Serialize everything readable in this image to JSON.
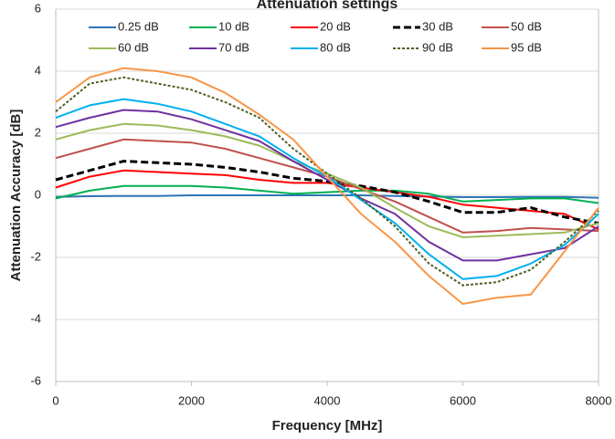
{
  "chart_data": {
    "type": "line",
    "title": "Attenuation settings",
    "x_label": "Frequency [MHz]",
    "y_label": "Attenuation Accuracy [dB]",
    "x": [
      0,
      500,
      1000,
      1500,
      2000,
      2500,
      3000,
      3500,
      4000,
      4500,
      5000,
      5500,
      6000,
      6500,
      7000,
      7500,
      8000
    ],
    "xlim": [
      0,
      8000
    ],
    "xticks": [
      0,
      2000,
      4000,
      6000,
      8000
    ],
    "ylim": [
      -6,
      6
    ],
    "yticks": [
      -6,
      -4,
      -2,
      0,
      2,
      4,
      6
    ],
    "grid": true,
    "series": [
      {
        "name": "0.25 dB",
        "color": "#2e75b6",
        "dash": "solid",
        "values": [
          -0.05,
          -0.03,
          -0.02,
          -0.02,
          0,
          0,
          0,
          0,
          0,
          0,
          -0.02,
          -0.04,
          -0.06,
          -0.06,
          -0.05,
          -0.05,
          -0.08
        ]
      },
      {
        "name": "10 dB",
        "color": "#00b050",
        "dash": "solid",
        "values": [
          -0.1,
          0.15,
          0.3,
          0.3,
          0.3,
          0.25,
          0.15,
          0.05,
          0.1,
          0.15,
          0.15,
          0.05,
          -0.2,
          -0.15,
          -0.1,
          -0.1,
          -0.25
        ]
      },
      {
        "name": "20 dB",
        "color": "#ff0000",
        "dash": "solid",
        "values": [
          0.25,
          0.6,
          0.8,
          0.75,
          0.7,
          0.65,
          0.5,
          0.4,
          0.4,
          0.25,
          0.1,
          -0.05,
          -0.3,
          -0.4,
          -0.5,
          -0.6,
          -1.1
        ]
      },
      {
        "name": "30 dB",
        "color": "#000000",
        "dash": "dashed",
        "values": [
          0.5,
          0.8,
          1.1,
          1.05,
          1.0,
          0.9,
          0.75,
          0.55,
          0.45,
          0.3,
          0.1,
          -0.2,
          -0.55,
          -0.55,
          -0.4,
          -0.7,
          -0.9
        ]
      },
      {
        "name": "50 dB",
        "color": "#c0504d",
        "dash": "solid",
        "values": [
          1.2,
          1.5,
          1.8,
          1.75,
          1.7,
          1.5,
          1.2,
          0.9,
          0.6,
          0.2,
          -0.2,
          -0.7,
          -1.2,
          -1.15,
          -1.05,
          -1.1,
          -1.15
        ]
      },
      {
        "name": "60 dB",
        "color": "#9bbb59",
        "dash": "solid",
        "values": [
          1.8,
          2.1,
          2.3,
          2.25,
          2.1,
          1.9,
          1.6,
          1.1,
          0.7,
          0.25,
          -0.4,
          -1.0,
          -1.35,
          -1.3,
          -1.25,
          -1.2,
          -0.9
        ]
      },
      {
        "name": "70 dB",
        "color": "#7030a0",
        "dash": "solid",
        "values": [
          2.2,
          2.5,
          2.75,
          2.7,
          2.45,
          2.1,
          1.75,
          1.1,
          0.5,
          -0.1,
          -0.6,
          -1.5,
          -2.1,
          -2.1,
          -1.9,
          -1.7,
          -1.0
        ]
      },
      {
        "name": "80 dB",
        "color": "#00b0f0",
        "dash": "solid",
        "values": [
          2.5,
          2.9,
          3.1,
          2.95,
          2.7,
          2.3,
          1.9,
          1.2,
          0.6,
          -0.15,
          -0.9,
          -1.9,
          -2.7,
          -2.6,
          -2.2,
          -1.6,
          -0.6
        ]
      },
      {
        "name": "90 dB",
        "color": "#4f6228",
        "dash": "dotted",
        "values": [
          2.7,
          3.6,
          3.8,
          3.6,
          3.4,
          3.0,
          2.5,
          1.5,
          0.7,
          -0.1,
          -1.0,
          -2.2,
          -2.9,
          -2.8,
          -2.4,
          -1.5,
          -0.5
        ]
      },
      {
        "name": "95 dB",
        "color": "#f79646",
        "dash": "solid",
        "values": [
          3.0,
          3.8,
          4.1,
          4.0,
          3.8,
          3.3,
          2.6,
          1.8,
          0.6,
          -0.6,
          -1.5,
          -2.6,
          -3.5,
          -3.3,
          -3.2,
          -1.8,
          -0.4
        ]
      }
    ]
  }
}
